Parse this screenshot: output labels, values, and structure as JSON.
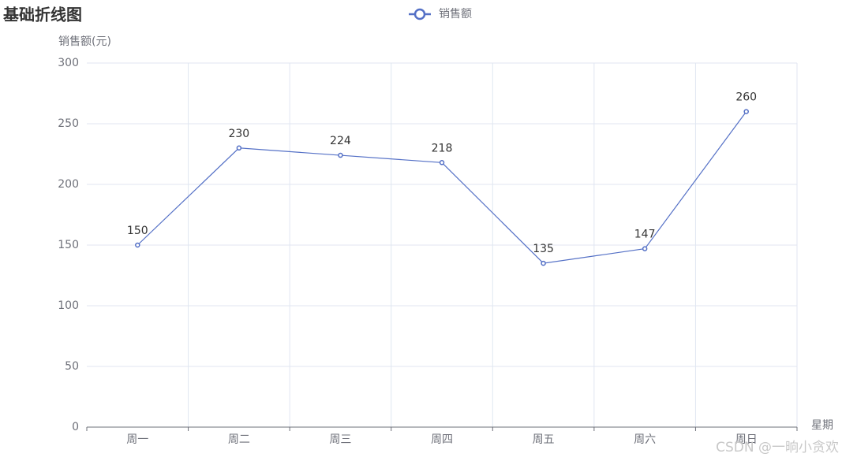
{
  "chart_data": {
    "type": "line",
    "title": "基础折线图",
    "y_label": "销售额(元)",
    "x_label": "星期",
    "categories": [
      "周一",
      "周二",
      "周三",
      "周四",
      "周五",
      "周六",
      "周日"
    ],
    "series": [
      {
        "name": "销售额",
        "color": "#5470c6",
        "values": [
          150,
          230,
          224,
          218,
          135,
          147,
          260
        ]
      }
    ],
    "ylim": [
      0,
      300
    ],
    "yticks": [
      0,
      50,
      100,
      150,
      200,
      250,
      300
    ],
    "grid": true,
    "watermark": "CSDN @一晌小贪欢"
  }
}
